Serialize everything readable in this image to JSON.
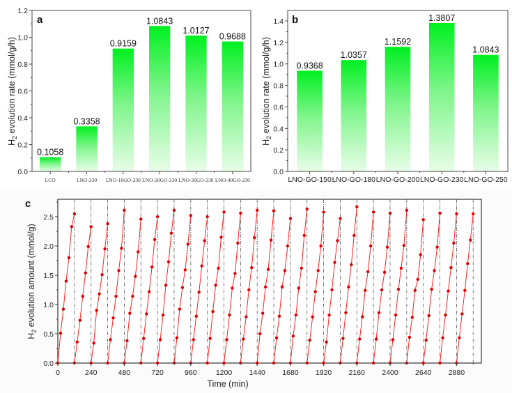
{
  "chart_data": [
    {
      "panel": "a",
      "type": "bar",
      "ylabel": "H2 evolution rate (mmol/g/h)",
      "ylabel_main": "H",
      "ylabel_sub": "2",
      "ylabel_rest": " evolution rate (mmol/g/h)",
      "xlabel": "",
      "ylim": [
        0,
        1.2
      ],
      "yticks": [
        "0.0",
        "0.2",
        "0.4",
        "0.6",
        "0.8",
        "1.0",
        "1.2"
      ],
      "categories": [
        "LCO",
        "LNO-230",
        "LNO-10GO-230",
        "LNO-20GO-230",
        "LNO-30GO-230",
        "LNO-40GO-230"
      ],
      "values": [
        0.1058,
        0.3358,
        0.9159,
        1.0843,
        1.0127,
        0.9688
      ],
      "data_labels": [
        "0.1058",
        "0.3358",
        "0.9159",
        "1.0843",
        "1.0127",
        "0.9688"
      ],
      "bar_color_top": "#00f020",
      "bar_color_bottom": "#e8fde8",
      "grid": false
    },
    {
      "panel": "b",
      "type": "bar",
      "ylabel": "H2 evolution rate (mmol/g/h)",
      "ylabel_main": "H",
      "ylabel_sub": "2",
      "ylabel_rest": " evolution rate (mmol/g/h)",
      "xlabel": "",
      "ylim": [
        0,
        1.5
      ],
      "yticks": [
        "0.0",
        "0.2",
        "0.4",
        "0.6",
        "0.8",
        "1.0",
        "1.2",
        "1.4"
      ],
      "categories": [
        "LNO-GO-150",
        "LNO-GO-180",
        "LNO-GO-200",
        "LNO-GO-230",
        "LNO-GO-250"
      ],
      "values": [
        0.9368,
        1.0357,
        1.1592,
        1.3807,
        1.0843
      ],
      "data_labels": [
        "0.9368",
        "1.0357",
        "1.1592",
        "1.3807",
        "1.0843"
      ],
      "bar_color_top": "#00f020",
      "bar_color_bottom": "#e8fde8",
      "grid": false
    },
    {
      "panel": "c",
      "type": "line",
      "xlabel": "Time (min)",
      "ylabel": "H2 evolution amount (mmol/g)",
      "ylabel_main": "H",
      "ylabel_sub": "2",
      "ylabel_rest": " evolution amount (mmol/g)",
      "xlim": [
        0,
        3060
      ],
      "ylim": [
        0,
        2.8
      ],
      "xticks": [
        "0",
        "240",
        "480",
        "720",
        "960",
        "1200",
        "1440",
        "1680",
        "1920",
        "2160",
        "2400",
        "2640",
        "2880"
      ],
      "yticks": [
        "0.0",
        "0.5",
        "1.0",
        "1.5",
        "2.0",
        "2.5"
      ],
      "cycle_minutes": 120,
      "cycle_offsets_min": [
        0,
        20,
        40,
        60,
        80,
        100,
        120
      ],
      "cycles": [
        [
          0,
          0.51,
          0.92,
          1.4,
          1.8,
          2.33,
          2.55
        ],
        [
          0,
          0.36,
          0.73,
          1.14,
          1.54,
          1.99,
          2.33
        ],
        [
          0,
          0.34,
          0.9,
          1.18,
          1.51,
          1.95,
          2.38
        ],
        [
          0,
          0.4,
          0.77,
          1.14,
          1.58,
          1.96,
          2.61
        ],
        [
          0,
          0.38,
          0.85,
          1.14,
          1.48,
          1.9,
          2.46
        ],
        [
          0,
          0.42,
          0.84,
          1.22,
          1.64,
          2.11,
          2.5
        ],
        [
          0,
          0.4,
          0.82,
          1.33,
          1.73,
          2.22,
          2.61
        ],
        [
          0,
          0.43,
          0.92,
          1.29,
          1.59,
          2.03,
          2.52
        ],
        [
          0,
          0.4,
          0.8,
          1.21,
          1.66,
          2.09,
          2.5
        ],
        [
          0,
          0.42,
          0.88,
          1.33,
          1.62,
          2.15,
          2.58
        ],
        [
          0,
          0.4,
          0.82,
          1.28,
          1.53,
          2.05,
          2.56
        ],
        [
          0,
          0.41,
          0.79,
          1.25,
          1.63,
          2.14,
          2.61
        ],
        [
          0,
          0.5,
          0.85,
          1.3,
          1.6,
          2.1,
          2.6
        ],
        [
          0,
          0.43,
          0.8,
          1.3,
          1.58,
          2.0,
          2.47
        ],
        [
          0,
          0.46,
          0.82,
          1.28,
          1.62,
          2.18,
          2.63
        ],
        [
          0,
          0.39,
          0.79,
          1.22,
          1.58,
          2.0,
          2.58
        ],
        [
          0,
          0.36,
          0.82,
          1.25,
          1.72,
          2.09,
          2.47
        ],
        [
          0,
          0.42,
          0.86,
          1.3,
          1.68,
          2.18,
          2.67
        ],
        [
          0,
          0.41,
          0.79,
          1.24,
          1.56,
          2.0,
          2.58
        ],
        [
          0,
          0.41,
          0.86,
          1.25,
          1.55,
          1.98,
          2.56
        ],
        [
          0,
          0.4,
          0.82,
          1.26,
          1.62,
          2.01,
          2.61
        ],
        [
          0,
          0.44,
          0.78,
          1.24,
          1.43,
          1.85,
          2.45
        ],
        [
          0,
          0.39,
          0.81,
          1.26,
          1.58,
          1.98,
          2.56
        ],
        [
          0,
          0.43,
          0.82,
          1.23,
          1.63,
          2.05,
          2.55
        ],
        [
          0,
          0.43,
          0.84,
          1.24,
          1.7,
          2.1,
          2.55
        ]
      ],
      "series_color": "#ff2020",
      "marker_color": "#e00000",
      "divider_color": "#555555",
      "grid": false
    }
  ]
}
